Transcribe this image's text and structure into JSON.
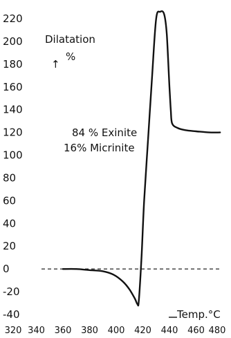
{
  "chart_data": {
    "type": "line",
    "title": "",
    "ylabel": "Dilatation",
    "yunit": "%",
    "xlabel": "Temp.°C",
    "annotation": [
      "84 % Exinite",
      "16% Micrinite"
    ],
    "xlim": [
      320,
      480
    ],
    "ylim": [
      -40,
      220
    ],
    "x_ticks": [
      320,
      340,
      360,
      380,
      400,
      420,
      440,
      460,
      480
    ],
    "y_ticks": [
      220,
      200,
      180,
      160,
      140,
      120,
      100,
      80,
      60,
      40,
      20,
      0,
      -20,
      -40
    ],
    "x_tick_labels": [
      "320",
      "340",
      "360",
      "380",
      "400",
      "420",
      "440",
      "460",
      "480"
    ],
    "y_tick_labels": [
      "220",
      "200",
      "180",
      "160",
      "140",
      "120",
      "100",
      "80",
      "60",
      "40",
      "20",
      "0",
      "-20",
      "-40"
    ],
    "grid": false,
    "reference_line": {
      "y": 0,
      "style": "dashed"
    },
    "series": [
      {
        "x": [
          360,
          370,
          380,
          390,
          398,
          405,
          410,
          414,
          416,
          417,
          419,
          421,
          424,
          427,
          430,
          433,
          436,
          438,
          440,
          441,
          442,
          446,
          452,
          460,
          470,
          478
        ],
        "y": [
          0,
          0,
          -1,
          -2,
          -5,
          -11,
          -18,
          -26,
          -31,
          -28,
          10,
          60,
          115,
          170,
          220,
          226,
          224,
          206,
          160,
          140,
          128,
          124,
          122,
          121,
          120,
          120
        ]
      }
    ]
  }
}
